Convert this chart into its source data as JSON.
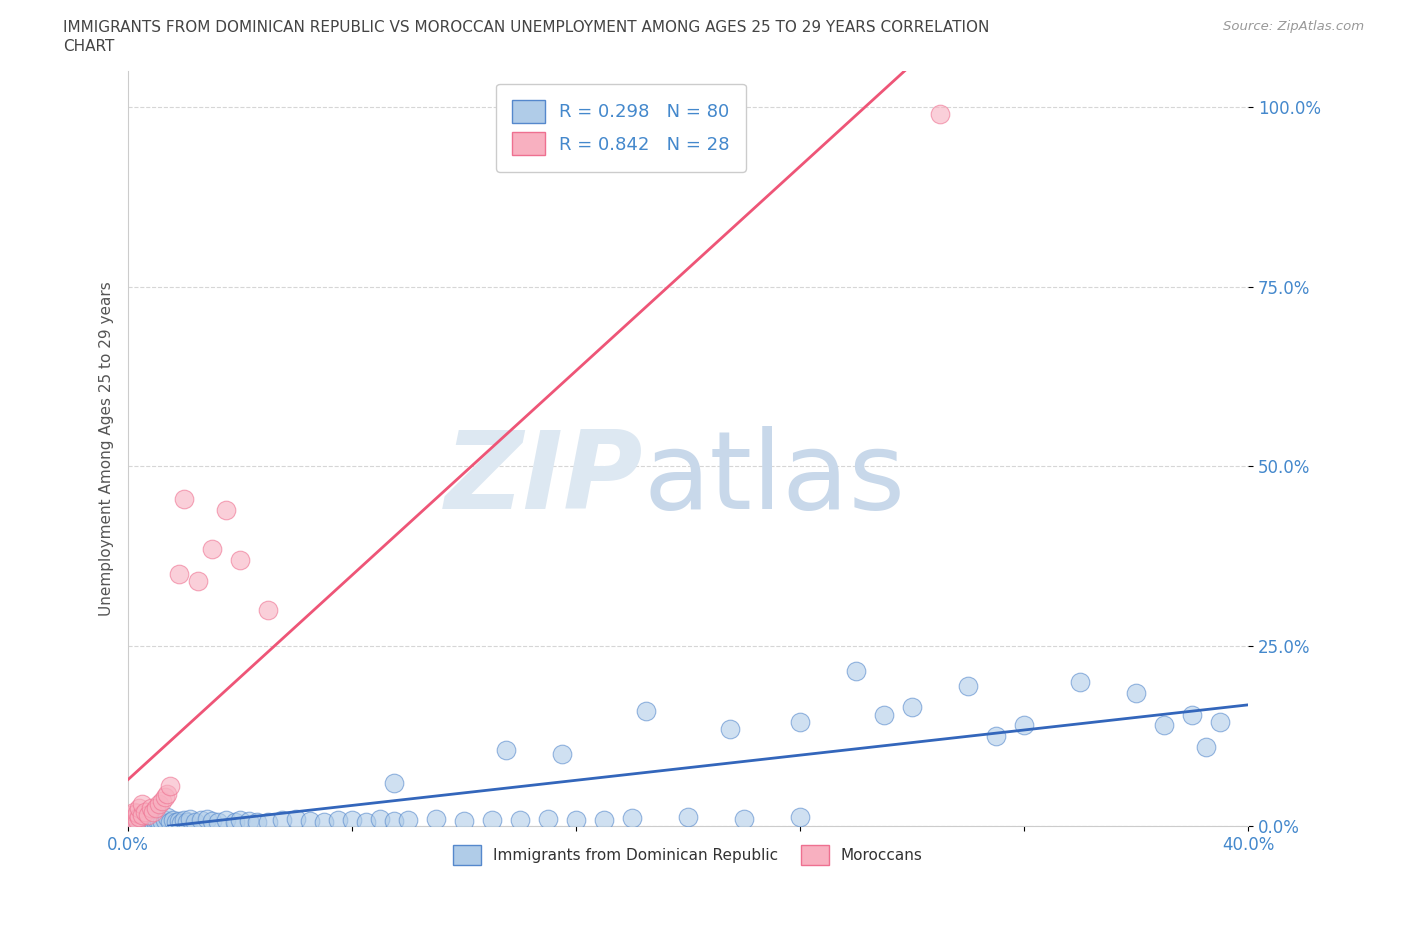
{
  "title_line1": "IMMIGRANTS FROM DOMINICAN REPUBLIC VS MOROCCAN UNEMPLOYMENT AMONG AGES 25 TO 29 YEARS CORRELATION",
  "title_line2": "CHART",
  "source": "Source: ZipAtlas.com",
  "ylabel": "Unemployment Among Ages 25 to 29 years",
  "xlim": [
    0.0,
    0.4
  ],
  "ylim": [
    0.0,
    1.05
  ],
  "ytick_vals": [
    0.0,
    0.25,
    0.5,
    0.75,
    1.0
  ],
  "ytick_labels": [
    "0.0%",
    "25.0%",
    "50.0%",
    "75.0%",
    "100.0%"
  ],
  "xtick_vals": [
    0.0,
    0.08,
    0.16,
    0.24,
    0.32,
    0.4
  ],
  "xtick_labels": [
    "0.0%",
    "",
    "",
    "",
    "",
    "40.0%"
  ],
  "blue_face_color": "#b0cce8",
  "blue_edge_color": "#5588cc",
  "pink_face_color": "#f8b0c0",
  "pink_edge_color": "#ee7090",
  "blue_line_color": "#3366bb",
  "pink_line_color": "#ee5577",
  "blue_r": 0.298,
  "blue_n": 80,
  "pink_r": 0.842,
  "pink_n": 28,
  "background_color": "#ffffff",
  "grid_color": "#cccccc",
  "tick_color": "#4488cc",
  "blue_scatter_x": [
    0.001,
    0.001,
    0.002,
    0.002,
    0.003,
    0.003,
    0.004,
    0.004,
    0.005,
    0.005,
    0.006,
    0.007,
    0.007,
    0.008,
    0.008,
    0.009,
    0.01,
    0.01,
    0.011,
    0.012,
    0.013,
    0.014,
    0.015,
    0.016,
    0.017,
    0.018,
    0.019,
    0.02,
    0.021,
    0.022,
    0.024,
    0.026,
    0.028,
    0.03,
    0.032,
    0.035,
    0.038,
    0.04,
    0.043,
    0.046,
    0.05,
    0.055,
    0.06,
    0.065,
    0.07,
    0.075,
    0.08,
    0.085,
    0.09,
    0.095,
    0.1,
    0.11,
    0.12,
    0.13,
    0.14,
    0.15,
    0.16,
    0.17,
    0.18,
    0.2,
    0.22,
    0.24,
    0.26,
    0.28,
    0.3,
    0.32,
    0.34,
    0.36,
    0.37,
    0.38,
    0.385,
    0.39,
    0.24,
    0.27,
    0.185,
    0.135,
    0.095,
    0.215,
    0.155,
    0.31
  ],
  "blue_scatter_y": [
    0.005,
    0.01,
    0.005,
    0.008,
    0.003,
    0.012,
    0.005,
    0.008,
    0.004,
    0.01,
    0.006,
    0.004,
    0.009,
    0.005,
    0.012,
    0.006,
    0.004,
    0.01,
    0.007,
    0.005,
    0.008,
    0.012,
    0.006,
    0.009,
    0.005,
    0.007,
    0.004,
    0.008,
    0.005,
    0.01,
    0.006,
    0.008,
    0.01,
    0.007,
    0.006,
    0.009,
    0.005,
    0.008,
    0.007,
    0.005,
    0.006,
    0.008,
    0.01,
    0.007,
    0.005,
    0.009,
    0.008,
    0.006,
    0.01,
    0.007,
    0.008,
    0.01,
    0.007,
    0.009,
    0.008,
    0.01,
    0.008,
    0.009,
    0.011,
    0.012,
    0.01,
    0.012,
    0.215,
    0.165,
    0.195,
    0.14,
    0.2,
    0.185,
    0.14,
    0.155,
    0.11,
    0.145,
    0.145,
    0.155,
    0.16,
    0.105,
    0.06,
    0.135,
    0.1,
    0.125
  ],
  "pink_scatter_x": [
    0.001,
    0.001,
    0.002,
    0.002,
    0.003,
    0.003,
    0.004,
    0.004,
    0.005,
    0.005,
    0.006,
    0.007,
    0.008,
    0.009,
    0.01,
    0.011,
    0.012,
    0.013,
    0.014,
    0.015,
    0.018,
    0.02,
    0.025,
    0.03,
    0.035,
    0.04,
    0.05,
    0.29
  ],
  "pink_scatter_y": [
    0.005,
    0.015,
    0.01,
    0.02,
    0.008,
    0.018,
    0.012,
    0.025,
    0.015,
    0.03,
    0.02,
    0.015,
    0.025,
    0.02,
    0.025,
    0.03,
    0.035,
    0.04,
    0.045,
    0.055,
    0.35,
    0.455,
    0.34,
    0.385,
    0.44,
    0.37,
    0.3,
    0.99
  ]
}
